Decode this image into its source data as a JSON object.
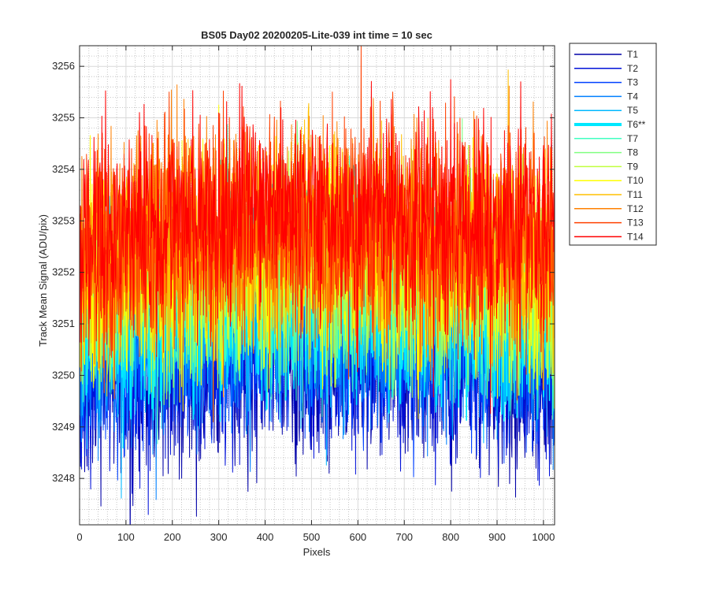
{
  "chart_data": {
    "type": "line",
    "title": "BS05 Day02 20200205-Lite-039 int time = 10 sec",
    "xlabel": "Pixels",
    "ylabel": "Track Mean Signal (ADU/pix)",
    "xlim": [
      0,
      1024
    ],
    "ylim": [
      3247.1,
      3256.4
    ],
    "xticks": [
      0,
      100,
      200,
      300,
      400,
      500,
      600,
      700,
      800,
      900,
      1000
    ],
    "yticks": [
      3248,
      3249,
      3250,
      3251,
      3252,
      3253,
      3254,
      3255,
      3256
    ],
    "grid": "major and minor (dotted)",
    "legend_position": "outside top-right",
    "series": [
      {
        "name": "T1",
        "color": "#0000a8",
        "mean": 3250.0,
        "amp": 0.95,
        "bold": false
      },
      {
        "name": "T2",
        "color": "#0010d8",
        "mean": 3250.3,
        "amp": 0.95,
        "bold": false
      },
      {
        "name": "T3",
        "color": "#0040ff",
        "mean": 3250.6,
        "amp": 0.95,
        "bold": false
      },
      {
        "name": "T4",
        "color": "#0080ff",
        "mean": 3250.9,
        "amp": 0.95,
        "bold": false
      },
      {
        "name": "T5",
        "color": "#00b8ff",
        "mean": 3251.1,
        "amp": 0.95,
        "bold": false
      },
      {
        "name": "T6**",
        "color": "#00e8ff",
        "mean": 3251.3,
        "amp": 0.95,
        "bold": true
      },
      {
        "name": "T7",
        "color": "#40ffc0",
        "mean": 3251.5,
        "amp": 0.95,
        "bold": false
      },
      {
        "name": "T8",
        "color": "#80ff80",
        "mean": 3251.7,
        "amp": 0.95,
        "bold": false
      },
      {
        "name": "T9",
        "color": "#c0ff40",
        "mean": 3251.9,
        "amp": 0.95,
        "bold": false
      },
      {
        "name": "T10",
        "color": "#ffff00",
        "mean": 3252.1,
        "amp": 1.0,
        "bold": false
      },
      {
        "name": "T11",
        "color": "#ffc000",
        "mean": 3252.3,
        "amp": 1.0,
        "bold": false
      },
      {
        "name": "T12",
        "color": "#ff8000",
        "mean": 3252.5,
        "amp": 1.05,
        "bold": false
      },
      {
        "name": "T13",
        "color": "#ff4000",
        "mean": 3252.7,
        "amp": 1.05,
        "bold": false
      },
      {
        "name": "T14",
        "color": "#ff0000",
        "mean": 3252.9,
        "amp": 1.05,
        "bold": false
      }
    ]
  }
}
